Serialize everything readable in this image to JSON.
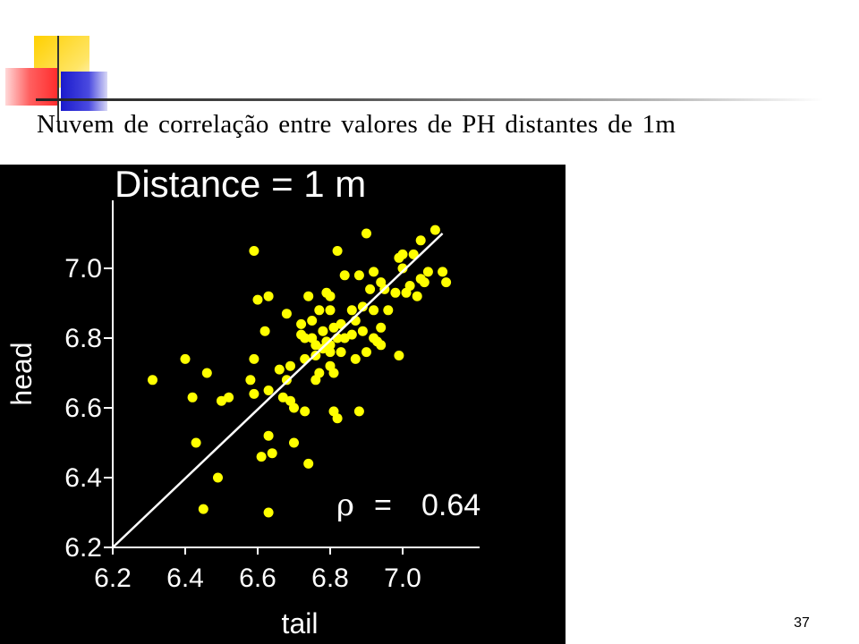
{
  "slide": {
    "title": "Nuvem de correlação entre valores de PH distantes de 1m",
    "slide_number": "37"
  },
  "colors": {
    "plot_background": "#000000",
    "point": "#ffff00",
    "fit_line": "#ffffff",
    "accent_yellow": "#ffd700",
    "accent_red": "#ff3030",
    "accent_blue": "#2222dd"
  },
  "chart_data": {
    "type": "scatter",
    "title": "Distance = 1 m",
    "xlabel": "tail",
    "ylabel": "head",
    "xlim": [
      6.2,
      7.2
    ],
    "ylim": [
      6.2,
      7.2
    ],
    "xticks": [
      "6.2",
      "6.4",
      "6.6",
      "6.8",
      "7.0"
    ],
    "yticks": [
      "6.2",
      "6.4",
      "6.6",
      "6.8",
      "7.0"
    ],
    "annotation": {
      "symbol": "ρ",
      "equals": "=",
      "value": "0.64"
    },
    "fit_line": [
      [
        6.2,
        6.2
      ],
      [
        7.11,
        7.1
      ]
    ],
    "grid": false,
    "points": [
      [
        6.31,
        6.68
      ],
      [
        6.4,
        6.74
      ],
      [
        6.42,
        6.63
      ],
      [
        6.43,
        6.5
      ],
      [
        6.45,
        6.31
      ],
      [
        6.46,
        6.7
      ],
      [
        6.49,
        6.4
      ],
      [
        6.5,
        6.62
      ],
      [
        6.52,
        6.63
      ],
      [
        6.58,
        6.68
      ],
      [
        6.59,
        7.05
      ],
      [
        6.59,
        6.74
      ],
      [
        6.6,
        6.91
      ],
      [
        6.59,
        6.64
      ],
      [
        6.61,
        6.46
      ],
      [
        6.62,
        6.82
      ],
      [
        6.63,
        6.92
      ],
      [
        6.63,
        6.65
      ],
      [
        6.63,
        6.52
      ],
      [
        6.63,
        6.3
      ],
      [
        6.64,
        6.47
      ],
      [
        6.66,
        6.71
      ],
      [
        6.67,
        6.63
      ],
      [
        6.68,
        6.87
      ],
      [
        6.68,
        6.68
      ],
      [
        6.69,
        6.72
      ],
      [
        6.69,
        6.62
      ],
      [
        6.7,
        6.6
      ],
      [
        6.7,
        6.5
      ],
      [
        6.72,
        6.84
      ],
      [
        6.72,
        6.81
      ],
      [
        6.73,
        6.8
      ],
      [
        6.73,
        6.74
      ],
      [
        6.73,
        6.59
      ],
      [
        6.74,
        6.92
      ],
      [
        6.74,
        6.44
      ],
      [
        6.75,
        6.85
      ],
      [
        6.75,
        6.8
      ],
      [
        6.76,
        6.78
      ],
      [
        6.76,
        6.75
      ],
      [
        6.76,
        6.68
      ],
      [
        6.77,
        6.88
      ],
      [
        6.77,
        6.7
      ],
      [
        6.78,
        6.82
      ],
      [
        6.78,
        6.77
      ],
      [
        6.79,
        6.93
      ],
      [
        6.79,
        6.79
      ],
      [
        6.8,
        6.92
      ],
      [
        6.8,
        6.88
      ],
      [
        6.8,
        6.78
      ],
      [
        6.8,
        6.76
      ],
      [
        6.8,
        6.72
      ],
      [
        6.81,
        6.83
      ],
      [
        6.81,
        6.7
      ],
      [
        6.81,
        6.59
      ],
      [
        6.82,
        7.05
      ],
      [
        6.82,
        6.8
      ],
      [
        6.82,
        6.57
      ],
      [
        6.83,
        6.84
      ],
      [
        6.83,
        6.76
      ],
      [
        6.84,
        6.98
      ],
      [
        6.84,
        6.8
      ],
      [
        6.86,
        6.88
      ],
      [
        6.86,
        6.81
      ],
      [
        6.87,
        6.85
      ],
      [
        6.87,
        6.74
      ],
      [
        6.88,
        6.98
      ],
      [
        6.88,
        6.59
      ],
      [
        6.89,
        6.89
      ],
      [
        6.89,
        6.82
      ],
      [
        6.9,
        7.1
      ],
      [
        6.9,
        6.76
      ],
      [
        6.91,
        6.94
      ],
      [
        6.92,
        6.99
      ],
      [
        6.92,
        6.88
      ],
      [
        6.92,
        6.8
      ],
      [
        6.93,
        6.79
      ],
      [
        6.94,
        6.96
      ],
      [
        6.94,
        6.83
      ],
      [
        6.94,
        6.78
      ],
      [
        6.95,
        6.94
      ],
      [
        6.96,
        6.88
      ],
      [
        6.98,
        6.93
      ],
      [
        6.99,
        7.03
      ],
      [
        6.99,
        6.75
      ],
      [
        7.0,
        7.04
      ],
      [
        7.0,
        7.0
      ],
      [
        7.01,
        6.93
      ],
      [
        7.02,
        6.95
      ],
      [
        7.03,
        7.04
      ],
      [
        7.04,
        6.92
      ],
      [
        7.05,
        7.08
      ],
      [
        7.05,
        6.97
      ],
      [
        7.06,
        6.96
      ],
      [
        7.07,
        6.99
      ],
      [
        7.09,
        7.11
      ],
      [
        7.11,
        6.99
      ],
      [
        7.12,
        6.96
      ]
    ]
  }
}
